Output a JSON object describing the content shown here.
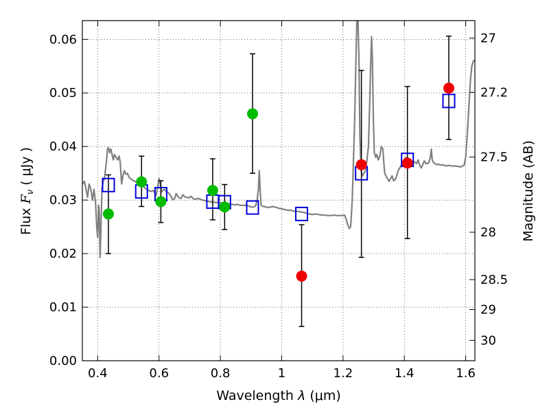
{
  "chart_data": {
    "type": "scatter",
    "title": "",
    "xlabel": "Wavelength",
    "xlabel_symbol": "λ",
    "xlabel_unit": "(μm)",
    "ylabel": "Flux",
    "ylabel_symbol": "F",
    "ylabel_subscript": "ν",
    "ylabel_unit": "( μJy )",
    "y2label": "Magnitude (AB)",
    "xlim": [
      0.35,
      1.63
    ],
    "ylim": [
      0.0,
      0.0635
    ],
    "grid": true,
    "x_ticks": [
      {
        "value": 0.4,
        "label": "0.4"
      },
      {
        "value": 0.6,
        "label": "0.6"
      },
      {
        "value": 0.8,
        "label": "0.8"
      },
      {
        "value": 1.0,
        "label": "1"
      },
      {
        "value": 1.2,
        "label": "1.2"
      },
      {
        "value": 1.4,
        "label": "1.4"
      },
      {
        "value": 1.6,
        "label": "1.6"
      }
    ],
    "y_ticks": [
      {
        "value": 0.0,
        "label": "0.00"
      },
      {
        "value": 0.01,
        "label": "0.01"
      },
      {
        "value": 0.02,
        "label": "0.02"
      },
      {
        "value": 0.03,
        "label": "0.03"
      },
      {
        "value": 0.04,
        "label": "0.04"
      },
      {
        "value": 0.05,
        "label": "0.05"
      },
      {
        "value": 0.06,
        "label": "0.06"
      }
    ],
    "y2_ticks": [
      {
        "flux": 0.06026,
        "label": "27"
      },
      {
        "flux": 0.05012,
        "label": "27.2"
      },
      {
        "flux": 0.03802,
        "label": "27.5"
      },
      {
        "flux": 0.02399,
        "label": "28"
      },
      {
        "flux": 0.01514,
        "label": "28.5"
      },
      {
        "flux": 0.00955,
        "label": "29"
      },
      {
        "flux": 0.0038,
        "label": "30"
      }
    ],
    "series": [
      {
        "name": "green-detections",
        "color": "#00bb00",
        "marker": "circle",
        "points": [
          {
            "x": 0.435,
            "y": 0.0274,
            "err_lo": 0.02,
            "err_hi": 0.0347
          },
          {
            "x": 0.543,
            "y": 0.0334,
            "err_lo": 0.0288,
            "err_hi": 0.0382
          },
          {
            "x": 0.606,
            "y": 0.0297,
            "err_lo": 0.0258,
            "err_hi": 0.0336
          },
          {
            "x": 0.775,
            "y": 0.0318,
            "err_lo": 0.0263,
            "err_hi": 0.0377
          },
          {
            "x": 0.814,
            "y": 0.0287,
            "err_lo": 0.0245,
            "err_hi": 0.0329
          },
          {
            "x": 0.905,
            "y": 0.0461,
            "err_lo": 0.035,
            "err_hi": 0.0573
          }
        ]
      },
      {
        "name": "red-detections",
        "color": "#ee0000",
        "marker": "circle",
        "points": [
          {
            "x": 1.065,
            "y": 0.0158,
            "err_lo": 0.0064,
            "err_hi": 0.0254
          },
          {
            "x": 1.26,
            "y": 0.0366,
            "err_lo": 0.0193,
            "err_hi": 0.0542
          },
          {
            "x": 1.41,
            "y": 0.0369,
            "err_lo": 0.0228,
            "err_hi": 0.0512
          },
          {
            "x": 1.545,
            "y": 0.0509,
            "err_lo": 0.0413,
            "err_hi": 0.0606
          }
        ]
      },
      {
        "name": "model-fluxes",
        "color": "#0000dd",
        "marker": "open-square",
        "points": [
          {
            "x": 0.435,
            "y": 0.0328
          },
          {
            "x": 0.543,
            "y": 0.0316
          },
          {
            "x": 0.606,
            "y": 0.0311
          },
          {
            "x": 0.775,
            "y": 0.0297
          },
          {
            "x": 0.814,
            "y": 0.0296
          },
          {
            "x": 0.905,
            "y": 0.0286
          },
          {
            "x": 1.065,
            "y": 0.0274
          },
          {
            "x": 1.26,
            "y": 0.035
          },
          {
            "x": 1.41,
            "y": 0.0375
          },
          {
            "x": 1.545,
            "y": 0.0485
          }
        ]
      },
      {
        "name": "SED template",
        "color": "#808080",
        "type": "line",
        "points": [
          [
            0.35,
            0.033
          ],
          [
            0.357,
            0.0335
          ],
          [
            0.362,
            0.032
          ],
          [
            0.367,
            0.0305
          ],
          [
            0.372,
            0.033
          ],
          [
            0.378,
            0.032
          ],
          [
            0.383,
            0.03
          ],
          [
            0.388,
            0.032
          ],
          [
            0.393,
            0.0295
          ],
          [
            0.397,
            0.025
          ],
          [
            0.4,
            0.023
          ],
          [
            0.403,
            0.029
          ],
          [
            0.405,
            0.028
          ],
          [
            0.408,
            0.0193
          ],
          [
            0.411,
            0.026
          ],
          [
            0.414,
            0.032
          ],
          [
            0.418,
            0.0335
          ],
          [
            0.422,
            0.034
          ],
          [
            0.426,
            0.036
          ],
          [
            0.429,
            0.0375
          ],
          [
            0.432,
            0.0395
          ],
          [
            0.435,
            0.0398
          ],
          [
            0.439,
            0.0388
          ],
          [
            0.443,
            0.0395
          ],
          [
            0.447,
            0.0385
          ],
          [
            0.451,
            0.0375
          ],
          [
            0.455,
            0.0385
          ],
          [
            0.46,
            0.038
          ],
          [
            0.465,
            0.0375
          ],
          [
            0.47,
            0.0382
          ],
          [
            0.474,
            0.0368
          ],
          [
            0.478,
            0.033
          ],
          [
            0.482,
            0.0345
          ],
          [
            0.487,
            0.0355
          ],
          [
            0.492,
            0.0348
          ],
          [
            0.497,
            0.035
          ],
          [
            0.502,
            0.0343
          ],
          [
            0.507,
            0.034
          ],
          [
            0.512,
            0.0338
          ],
          [
            0.518,
            0.0336
          ],
          [
            0.524,
            0.0334
          ],
          [
            0.53,
            0.0332
          ],
          [
            0.536,
            0.033
          ],
          [
            0.541,
            0.0327
          ],
          [
            0.545,
            0.033
          ],
          [
            0.55,
            0.0325
          ],
          [
            0.555,
            0.0322
          ],
          [
            0.56,
            0.032
          ],
          [
            0.565,
            0.0318
          ],
          [
            0.57,
            0.0317
          ],
          [
            0.575,
            0.0316
          ],
          [
            0.58,
            0.0318
          ],
          [
            0.585,
            0.0315
          ],
          [
            0.59,
            0.0308
          ],
          [
            0.596,
            0.0325
          ],
          [
            0.6,
            0.034
          ],
          [
            0.604,
            0.033
          ],
          [
            0.608,
            0.0315
          ],
          [
            0.612,
            0.0318
          ],
          [
            0.618,
            0.032
          ],
          [
            0.624,
            0.0316
          ],
          [
            0.63,
            0.0314
          ],
          [
            0.635,
            0.031
          ],
          [
            0.64,
            0.0306
          ],
          [
            0.645,
            0.03
          ],
          [
            0.65,
            0.0302
          ],
          [
            0.656,
            0.0312
          ],
          [
            0.661,
            0.0307
          ],
          [
            0.666,
            0.0304
          ],
          [
            0.672,
            0.0303
          ],
          [
            0.678,
            0.031
          ],
          [
            0.684,
            0.0306
          ],
          [
            0.69,
            0.0305
          ],
          [
            0.697,
            0.0304
          ],
          [
            0.704,
            0.0307
          ],
          [
            0.711,
            0.0303
          ],
          [
            0.718,
            0.0301
          ],
          [
            0.725,
            0.0303
          ],
          [
            0.733,
            0.0302
          ],
          [
            0.741,
            0.03
          ],
          [
            0.749,
            0.0299
          ],
          [
            0.757,
            0.0298
          ],
          [
            0.765,
            0.0297
          ],
          [
            0.773,
            0.0296
          ],
          [
            0.781,
            0.0296
          ],
          [
            0.789,
            0.0295
          ],
          [
            0.797,
            0.0296
          ],
          [
            0.805,
            0.0294
          ],
          [
            0.813,
            0.0293
          ],
          [
            0.821,
            0.0293
          ],
          [
            0.829,
            0.0293
          ],
          [
            0.838,
            0.0292
          ],
          [
            0.847,
            0.0291
          ],
          [
            0.856,
            0.0292
          ],
          [
            0.865,
            0.029
          ],
          [
            0.874,
            0.029
          ],
          [
            0.883,
            0.029
          ],
          [
            0.892,
            0.0289
          ],
          [
            0.9,
            0.0287
          ],
          [
            0.908,
            0.0287
          ],
          [
            0.915,
            0.0289
          ],
          [
            0.92,
            0.03
          ],
          [
            0.924,
            0.032
          ],
          [
            0.927,
            0.0355
          ],
          [
            0.93,
            0.0315
          ],
          [
            0.933,
            0.029
          ],
          [
            0.94,
            0.0288
          ],
          [
            0.95,
            0.0287
          ],
          [
            0.96,
            0.0286
          ],
          [
            0.968,
            0.0288
          ],
          [
            0.977,
            0.0287
          ],
          [
            0.985,
            0.0286
          ],
          [
            0.993,
            0.0284
          ],
          [
            1.0,
            0.0284
          ],
          [
            1.01,
            0.0282
          ],
          [
            1.02,
            0.0281
          ],
          [
            1.03,
            0.0281
          ],
          [
            1.04,
            0.0279
          ],
          [
            1.05,
            0.0279
          ],
          [
            1.06,
            0.0278
          ],
          [
            1.07,
            0.0277
          ],
          [
            1.08,
            0.0276
          ],
          [
            1.09,
            0.0274
          ],
          [
            1.1,
            0.0273
          ],
          [
            1.11,
            0.0274
          ],
          [
            1.12,
            0.0273
          ],
          [
            1.13,
            0.0272
          ],
          [
            1.14,
            0.0272
          ],
          [
            1.15,
            0.0271
          ],
          [
            1.16,
            0.0271
          ],
          [
            1.17,
            0.0272
          ],
          [
            1.18,
            0.0271
          ],
          [
            1.19,
            0.0271
          ],
          [
            1.2,
            0.0271
          ],
          [
            1.205,
            0.0272
          ],
          [
            1.21,
            0.0265
          ],
          [
            1.215,
            0.0255
          ],
          [
            1.22,
            0.0247
          ],
          [
            1.225,
            0.025
          ],
          [
            1.23,
            0.03
          ],
          [
            1.234,
            0.037
          ],
          [
            1.238,
            0.045
          ],
          [
            1.242,
            0.056
          ],
          [
            1.245,
            0.0635
          ],
          [
            1.249,
            0.0635
          ],
          [
            1.252,
            0.056
          ],
          [
            1.255,
            0.042
          ],
          [
            1.259,
            0.0355
          ],
          [
            1.263,
            0.0345
          ],
          [
            1.268,
            0.035
          ],
          [
            1.273,
            0.0355
          ],
          [
            1.278,
            0.0375
          ],
          [
            1.283,
            0.04
          ],
          [
            1.287,
            0.048
          ],
          [
            1.29,
            0.055
          ],
          [
            1.293,
            0.0605
          ],
          [
            1.296,
            0.056
          ],
          [
            1.299,
            0.045
          ],
          [
            1.302,
            0.039
          ],
          [
            1.306,
            0.038
          ],
          [
            1.31,
            0.0385
          ],
          [
            1.315,
            0.0375
          ],
          [
            1.32,
            0.0382
          ],
          [
            1.325,
            0.04
          ],
          [
            1.33,
            0.0395
          ],
          [
            1.333,
            0.037
          ],
          [
            1.336,
            0.035
          ],
          [
            1.34,
            0.0345
          ],
          [
            1.345,
            0.034
          ],
          [
            1.35,
            0.0335
          ],
          [
            1.355,
            0.034
          ],
          [
            1.36,
            0.0345
          ],
          [
            1.365,
            0.0336
          ],
          [
            1.37,
            0.0338
          ],
          [
            1.375,
            0.0345
          ],
          [
            1.38,
            0.0355
          ],
          [
            1.385,
            0.036
          ],
          [
            1.39,
            0.0365
          ],
          [
            1.395,
            0.0372
          ],
          [
            1.4,
            0.0375
          ],
          [
            1.405,
            0.038
          ],
          [
            1.41,
            0.0376
          ],
          [
            1.415,
            0.0373
          ],
          [
            1.42,
            0.037
          ],
          [
            1.425,
            0.0368
          ],
          [
            1.43,
            0.0372
          ],
          [
            1.435,
            0.037
          ],
          [
            1.44,
            0.0368
          ],
          [
            1.445,
            0.0375
          ],
          [
            1.45,
            0.0365
          ],
          [
            1.455,
            0.036
          ],
          [
            1.46,
            0.0366
          ],
          [
            1.465,
            0.0373
          ],
          [
            1.47,
            0.0368
          ],
          [
            1.475,
            0.0368
          ],
          [
            1.48,
            0.037
          ],
          [
            1.485,
            0.038
          ],
          [
            1.488,
            0.0395
          ],
          [
            1.491,
            0.0375
          ],
          [
            1.495,
            0.037
          ],
          [
            1.5,
            0.0368
          ],
          [
            1.505,
            0.0366
          ],
          [
            1.51,
            0.0367
          ],
          [
            1.515,
            0.0366
          ],
          [
            1.52,
            0.0365
          ],
          [
            1.525,
            0.0366
          ],
          [
            1.53,
            0.0365
          ],
          [
            1.535,
            0.0364
          ],
          [
            1.54,
            0.0364
          ],
          [
            1.545,
            0.0365
          ],
          [
            1.55,
            0.0364
          ],
          [
            1.555,
            0.0364
          ],
          [
            1.56,
            0.0363
          ],
          [
            1.565,
            0.0364
          ],
          [
            1.57,
            0.0363
          ],
          [
            1.575,
            0.0363
          ],
          [
            1.58,
            0.0362
          ],
          [
            1.585,
            0.0362
          ],
          [
            1.59,
            0.0364
          ],
          [
            1.595,
            0.0365
          ],
          [
            1.6,
            0.038
          ],
          [
            1.605,
            0.042
          ],
          [
            1.61,
            0.047
          ],
          [
            1.615,
            0.052
          ],
          [
            1.62,
            0.055
          ],
          [
            1.625,
            0.056
          ],
          [
            1.63,
            0.056
          ]
        ]
      }
    ]
  }
}
